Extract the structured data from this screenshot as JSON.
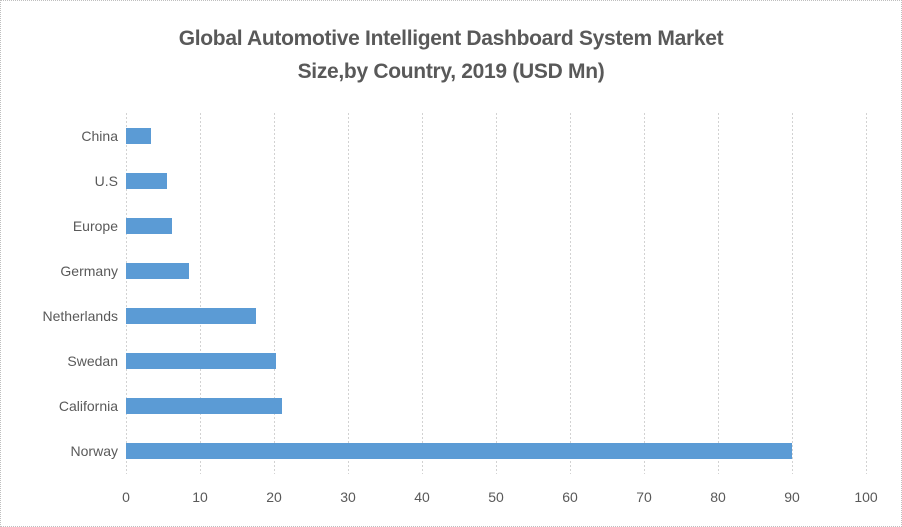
{
  "frame": {
    "background": "#FFFFFF",
    "border_color": "#BFBFBF"
  },
  "chart_data": {
    "type": "bar",
    "orientation": "horizontal",
    "title": "Global Automotive Intelligent Dashboard System Market Size,by Country, 2019 (USD Mn)",
    "title_lines": [
      "Global Automotive Intelligent Dashboard System Market",
      "Size,by Country, 2019 (USD Mn)"
    ],
    "categories": [
      "China",
      "U.S",
      "Europe",
      "Germany",
      "Netherlands",
      "Swedan",
      "California",
      "Norway"
    ],
    "values": [
      3.4,
      5.5,
      6.2,
      8.5,
      17.6,
      20.3,
      21.1,
      90
    ],
    "xlabel": "",
    "ylabel": "",
    "xlim": [
      0,
      100
    ],
    "x_ticks": [
      "0",
      "10",
      "20",
      "30",
      "40",
      "50",
      "60",
      "70",
      "80",
      "90",
      "100"
    ],
    "grid": "vertical-dotted",
    "legend": "none",
    "colors": {
      "bar": "#5B9BD5",
      "gridline": "#D2D2D2",
      "text": "#595959",
      "title_text": "#595959",
      "background": "#FFFFFF",
      "border": "#BFBFBF"
    }
  }
}
